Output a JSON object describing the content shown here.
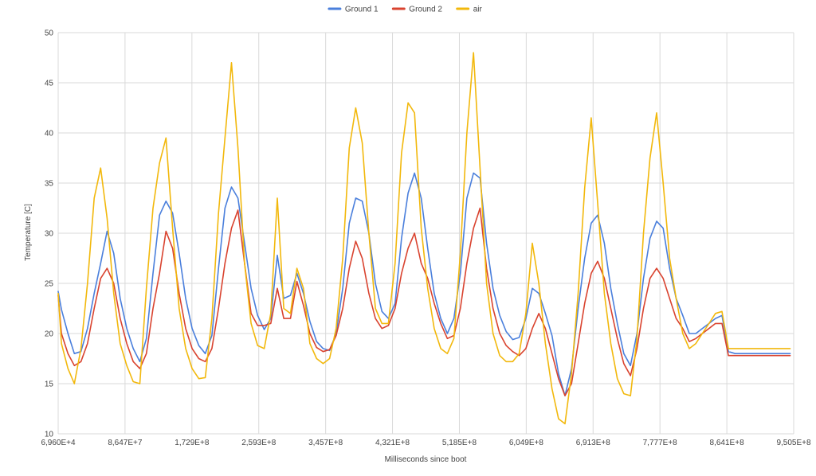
{
  "chart_data": {
    "type": "line",
    "title": "",
    "xlabel": "Milliseconds since boot",
    "ylabel": "Temperature [C]",
    "ylim": [
      10,
      50
    ],
    "xlim": [
      69600,
      950500000
    ],
    "y_ticks": [
      10,
      15,
      20,
      25,
      30,
      35,
      40,
      45,
      50
    ],
    "x_ticks": [
      {
        "value": 69600,
        "label": "6,960E+4"
      },
      {
        "value": 86470000,
        "label": "8,647E+7"
      },
      {
        "value": 172900000,
        "label": "1,729E+8"
      },
      {
        "value": 259300000,
        "label": "2,593E+8"
      },
      {
        "value": 345700000,
        "label": "3,457E+8"
      },
      {
        "value": 432100000,
        "label": "4,321E+8"
      },
      {
        "value": 518500000,
        "label": "5,185E+8"
      },
      {
        "value": 604900000,
        "label": "6,049E+8"
      },
      {
        "value": 691300000,
        "label": "6,913E+8"
      },
      {
        "value": 777700000,
        "label": "7,777E+8"
      },
      {
        "value": 864100000,
        "label": "8,641E+8"
      },
      {
        "value": 950500000,
        "label": "9,505E+8"
      }
    ],
    "grid": true,
    "legend_position": "top-center",
    "x": [
      69600,
      4300000,
      12700000,
      21000000,
      29500000,
      38000000,
      46600000,
      55000000,
      63300000,
      71800000,
      80200000,
      88700000,
      97100000,
      105600000,
      114100000,
      122600000,
      131000000,
      139400000,
      147900000,
      156400000,
      164800000,
      173200000,
      181800000,
      190200000,
      198700000,
      207200000,
      215600000,
      224000000,
      232400000,
      240900000,
      249400000,
      257800000,
      266400000,
      274800000,
      283200000,
      291600000,
      300200000,
      308600000,
      317000000,
      325400000,
      334000000,
      342400000,
      350800000,
      359200000,
      367800000,
      376200000,
      384600000,
      393000000,
      401600000,
      410000000,
      418400000,
      426800000,
      435400000,
      443800000,
      452200000,
      460600000,
      469200000,
      477600000,
      486000000,
      494400000,
      503000000,
      511400000,
      519800000,
      528200000,
      536800000,
      545200000,
      553600000,
      562000000,
      570600000,
      579000000,
      587400000,
      595800000,
      604400000,
      612800000,
      621200000,
      629600000,
      638200000,
      646600000,
      655000000,
      663400000,
      672000000,
      680400000,
      688800000,
      697200000,
      705800000,
      714200000,
      722600000,
      731000000,
      739600000,
      748000000,
      756400000,
      764800000,
      773400000,
      781800000,
      790200000,
      798600000,
      807200000,
      815600000,
      824000000,
      832400000,
      841000000,
      849400000,
      857800000,
      866200000,
      874800000,
      883200000,
      891600000,
      900000000,
      908600000,
      917000000,
      925400000,
      933800000,
      942400000,
      946000000
    ],
    "series": [
      {
        "name": "Ground 1",
        "color": "#4a7fdc",
        "values": [
          24.2,
          22.4,
          20.0,
          18.0,
          18.2,
          20.5,
          24.0,
          27.0,
          30.2,
          28.0,
          23.5,
          20.5,
          18.5,
          17.2,
          19.5,
          26.0,
          31.8,
          33.2,
          32.0,
          28.0,
          23.5,
          20.5,
          18.8,
          18.0,
          19.8,
          26.5,
          32.5,
          34.6,
          33.5,
          29.0,
          24.5,
          21.8,
          20.4,
          21.5,
          27.8,
          23.5,
          23.8,
          26.0,
          24.0,
          21.2,
          19.2,
          18.5,
          18.3,
          20.0,
          24.5,
          31.0,
          33.5,
          33.2,
          30.0,
          25.0,
          22.2,
          21.5,
          23.0,
          29.5,
          34.0,
          36.0,
          33.5,
          28.5,
          24.0,
          21.5,
          20.0,
          21.5,
          26.0,
          33.5,
          36.0,
          35.5,
          29.0,
          24.5,
          21.8,
          20.2,
          19.4,
          19.6,
          21.5,
          24.5,
          24.0,
          22.0,
          19.8,
          16.0,
          13.8,
          16.5,
          22.5,
          27.5,
          31.0,
          31.8,
          29.0,
          24.5,
          21.0,
          18.0,
          16.8,
          20.0,
          25.5,
          29.5,
          31.2,
          30.5,
          26.5,
          23.5,
          21.8,
          20.0,
          20.0,
          20.5,
          21.0,
          21.5,
          21.8,
          18.2,
          18.0,
          18.0,
          18.0,
          18.0,
          18.0,
          18.0,
          18.0,
          18.0,
          18.0,
          18.0
        ]
      },
      {
        "name": "Ground 2",
        "color": "#d9432f",
        "values": [
          23.8,
          20.0,
          18.0,
          16.8,
          17.2,
          19.0,
          22.5,
          25.5,
          26.5,
          25.0,
          21.5,
          19.0,
          17.2,
          16.5,
          18.0,
          22.5,
          26.0,
          30.2,
          28.5,
          24.0,
          20.5,
          18.5,
          17.5,
          17.2,
          18.5,
          22.5,
          27.0,
          30.5,
          32.3,
          27.0,
          22.0,
          20.8,
          20.8,
          21.0,
          24.5,
          21.5,
          21.5,
          25.2,
          22.8,
          20.0,
          18.6,
          18.2,
          18.4,
          19.8,
          22.5,
          26.5,
          29.2,
          27.5,
          24.0,
          21.5,
          20.5,
          20.8,
          22.5,
          26.0,
          28.5,
          30.0,
          27.0,
          25.5,
          23.0,
          21.0,
          19.5,
          19.8,
          22.5,
          27.0,
          30.5,
          32.5,
          26.5,
          22.5,
          20.0,
          18.8,
          18.2,
          17.8,
          18.5,
          20.5,
          22.0,
          20.5,
          18.0,
          15.5,
          13.8,
          15.0,
          19.0,
          23.0,
          26.0,
          27.2,
          25.5,
          22.5,
          19.5,
          17.0,
          15.8,
          18.5,
          22.5,
          25.5,
          26.5,
          25.5,
          23.5,
          21.5,
          20.5,
          19.2,
          19.5,
          20.0,
          20.5,
          21.0,
          21.0,
          17.8,
          17.8,
          17.8,
          17.8,
          17.8,
          17.8,
          17.8,
          17.8,
          17.8,
          17.8,
          17.8
        ]
      },
      {
        "name": "air",
        "color": "#f2b80c",
        "values": [
          24.0,
          19.0,
          16.5,
          15.0,
          18.5,
          25.0,
          33.5,
          36.5,
          31.5,
          24.0,
          19.0,
          16.8,
          15.2,
          15.0,
          24.5,
          32.5,
          37.0,
          39.5,
          30.5,
          22.5,
          18.5,
          16.5,
          15.5,
          15.6,
          21.5,
          32.0,
          39.5,
          47.0,
          38.5,
          27.0,
          21.0,
          18.8,
          18.5,
          22.0,
          33.5,
          22.5,
          22.0,
          26.5,
          24.5,
          19.0,
          17.5,
          17.0,
          17.5,
          20.5,
          27.5,
          38.5,
          42.5,
          39.0,
          30.0,
          22.5,
          21.0,
          21.0,
          27.0,
          38.0,
          43.0,
          42.0,
          30.5,
          24.5,
          20.5,
          18.5,
          18.0,
          19.5,
          28.0,
          40.0,
          48.0,
          36.5,
          25.0,
          20.0,
          17.8,
          17.2,
          17.2,
          18.0,
          22.0,
          29.0,
          25.0,
          19.0,
          14.5,
          11.5,
          11.0,
          16.0,
          24.0,
          34.5,
          41.5,
          33.0,
          24.0,
          19.0,
          15.5,
          14.0,
          13.8,
          19.5,
          30.0,
          37.5,
          42.0,
          35.0,
          27.5,
          23.5,
          20.0,
          18.5,
          19.0,
          20.0,
          21.0,
          22.0,
          22.2,
          18.5,
          18.5,
          18.5,
          18.5,
          18.5,
          18.5,
          18.5,
          18.5,
          18.5,
          18.5,
          18.5
        ]
      }
    ]
  }
}
